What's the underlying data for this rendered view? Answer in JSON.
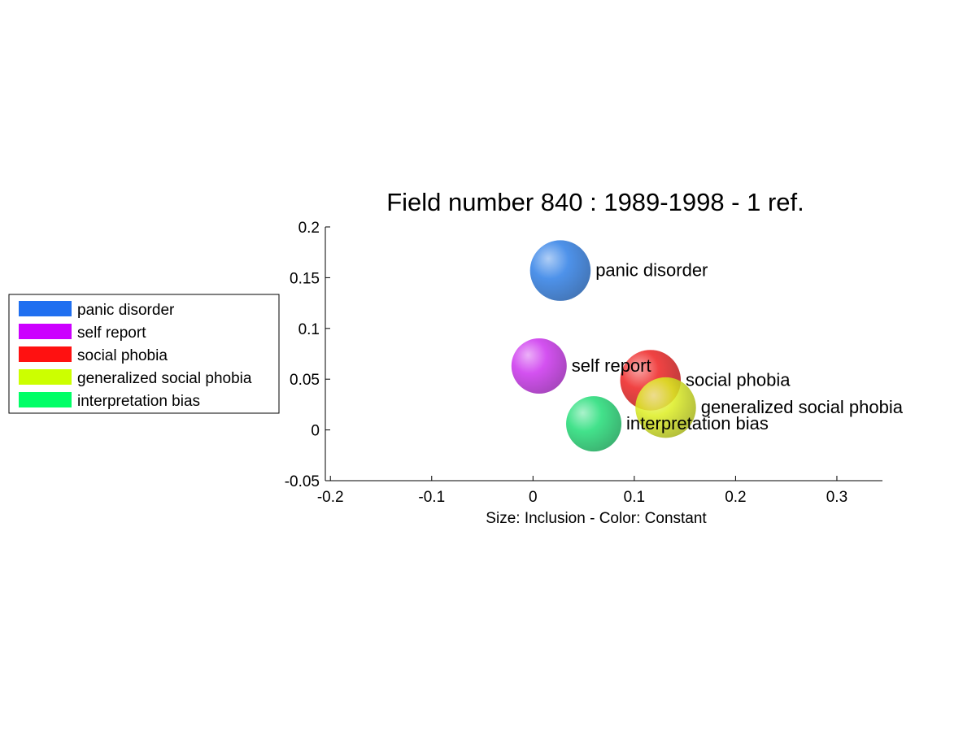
{
  "chart_data": {
    "type": "scatter",
    "title": "Field number 840 : 1989-1998  - 1 ref.",
    "xlabel": "Size: Inclusion - Color: Constant",
    "ylabel": "",
    "xlim": [
      -0.205,
      0.345
    ],
    "ylim": [
      -0.05,
      0.2
    ],
    "xticks": [
      -0.2,
      -0.1,
      0,
      0.1,
      0.2,
      0.3
    ],
    "xtick_labels": [
      "-0.2",
      "-0.1",
      "0",
      "0.1",
      "0.2",
      "0.3"
    ],
    "yticks": [
      -0.05,
      0,
      0.05,
      0.1,
      0.15,
      0.2
    ],
    "ytick_labels": [
      "-0.05",
      "0",
      "0.05",
      "0.1",
      "0.15",
      "0.2"
    ],
    "grid": false,
    "legend_position": "left",
    "points": [
      {
        "name": "panic disorder",
        "x": 0.027,
        "y": 0.157,
        "size": 1.2,
        "color": "#2f7fe6"
      },
      {
        "name": "self report",
        "x": 0.006,
        "y": 0.063,
        "size": 1.0,
        "color": "#cc33ee"
      },
      {
        "name": "social phobia",
        "x": 0.116,
        "y": 0.049,
        "size": 1.2,
        "color": "#ee2222"
      },
      {
        "name": "generalized social phobia",
        "x": 0.131,
        "y": 0.022,
        "size": 1.2,
        "color": "#ddee22"
      },
      {
        "name": "interpretation bias",
        "x": 0.06,
        "y": 0.006,
        "size": 1.0,
        "color": "#22dd77"
      }
    ]
  },
  "legend": {
    "items": [
      {
        "label": "panic disorder",
        "color": "#1f6ff0"
      },
      {
        "label": "self report",
        "color": "#cc00ff"
      },
      {
        "label": "social phobia",
        "color": "#ff1111"
      },
      {
        "label": "generalized social phobia",
        "color": "#ccff00"
      },
      {
        "label": "interpretation bias",
        "color": "#00ff66"
      }
    ]
  }
}
